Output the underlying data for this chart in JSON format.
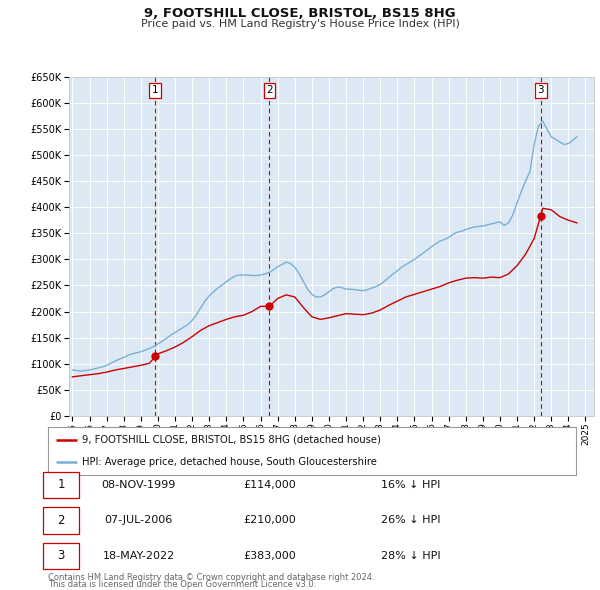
{
  "title": "9, FOOTSHILL CLOSE, BRISTOL, BS15 8HG",
  "subtitle": "Price paid vs. HM Land Registry's House Price Index (HPI)",
  "background_color": "#ffffff",
  "plot_bg_color": "#dce9f5",
  "grid_color": "#ffffff",
  "red_line_color": "#cc0000",
  "blue_line_color": "#7bafd4",
  "sale_marker_color": "#cc0000",
  "dashed_line_color": "#cc0000",
  "ylim": [
    0,
    650000
  ],
  "yticks": [
    0,
    50000,
    100000,
    150000,
    200000,
    250000,
    300000,
    350000,
    400000,
    450000,
    500000,
    550000,
    600000,
    650000
  ],
  "xlim_start": 1994.8,
  "xlim_end": 2025.5,
  "sales": [
    {
      "label": "1",
      "date": "08-NOV-1999",
      "price": 114000,
      "year": 1999.85,
      "hpi_pct": "16% ↓ HPI"
    },
    {
      "label": "2",
      "date": "07-JUL-2006",
      "price": 210000,
      "year": 2006.52,
      "hpi_pct": "26% ↓ HPI"
    },
    {
      "label": "3",
      "date": "18-MAY-2022",
      "price": 383000,
      "year": 2022.38,
      "hpi_pct": "28% ↓ HPI"
    }
  ],
  "legend_address": "9, FOOTSHILL CLOSE, BRISTOL, BS15 8HG (detached house)",
  "legend_hpi": "HPI: Average price, detached house, South Gloucestershire",
  "footer1": "Contains HM Land Registry data © Crown copyright and database right 2024.",
  "footer2": "This data is licensed under the Open Government Licence v3.0.",
  "hpi_data": {
    "years": [
      1995.0,
      1995.25,
      1995.5,
      1995.75,
      1996.0,
      1996.25,
      1996.5,
      1996.75,
      1997.0,
      1997.25,
      1997.5,
      1997.75,
      1998.0,
      1998.25,
      1998.5,
      1998.75,
      1999.0,
      1999.25,
      1999.5,
      1999.75,
      2000.0,
      2000.25,
      2000.5,
      2000.75,
      2001.0,
      2001.25,
      2001.5,
      2001.75,
      2002.0,
      2002.25,
      2002.5,
      2002.75,
      2003.0,
      2003.25,
      2003.5,
      2003.75,
      2004.0,
      2004.25,
      2004.5,
      2004.75,
      2005.0,
      2005.25,
      2005.5,
      2005.75,
      2006.0,
      2006.25,
      2006.5,
      2006.75,
      2007.0,
      2007.25,
      2007.5,
      2007.75,
      2008.0,
      2008.25,
      2008.5,
      2008.75,
      2009.0,
      2009.25,
      2009.5,
      2009.75,
      2010.0,
      2010.25,
      2010.5,
      2010.75,
      2011.0,
      2011.25,
      2011.5,
      2011.75,
      2012.0,
      2012.25,
      2012.5,
      2012.75,
      2013.0,
      2013.25,
      2013.5,
      2013.75,
      2014.0,
      2014.25,
      2014.5,
      2014.75,
      2015.0,
      2015.25,
      2015.5,
      2015.75,
      2016.0,
      2016.25,
      2016.5,
      2016.75,
      2017.0,
      2017.25,
      2017.5,
      2017.75,
      2018.0,
      2018.25,
      2018.5,
      2018.75,
      2019.0,
      2019.25,
      2019.5,
      2019.75,
      2020.0,
      2020.25,
      2020.5,
      2020.75,
      2021.0,
      2021.25,
      2021.5,
      2021.75,
      2022.0,
      2022.25,
      2022.5,
      2022.75,
      2023.0,
      2023.25,
      2023.5,
      2023.75,
      2024.0,
      2024.25,
      2024.5
    ],
    "values": [
      88000,
      87000,
      86000,
      87000,
      88000,
      90000,
      92000,
      94000,
      97000,
      101000,
      105000,
      109000,
      112000,
      116000,
      119000,
      121000,
      123000,
      126000,
      129000,
      133000,
      138000,
      143000,
      149000,
      155000,
      160000,
      165000,
      170000,
      175000,
      183000,
      194000,
      207000,
      220000,
      230000,
      238000,
      245000,
      251000,
      257000,
      263000,
      268000,
      270000,
      270000,
      270000,
      269000,
      269000,
      270000,
      272000,
      275000,
      280000,
      286000,
      290000,
      295000,
      292000,
      285000,
      273000,
      258000,
      243000,
      233000,
      228000,
      228000,
      232000,
      238000,
      244000,
      247000,
      246000,
      243000,
      243000,
      242000,
      241000,
      240000,
      242000,
      245000,
      248000,
      252000,
      258000,
      265000,
      272000,
      278000,
      285000,
      290000,
      295000,
      300000,
      306000,
      312000,
      318000,
      324000,
      330000,
      335000,
      338000,
      342000,
      348000,
      352000,
      354000,
      357000,
      360000,
      362000,
      363000,
      364000,
      366000,
      368000,
      370000,
      372000,
      365000,
      370000,
      385000,
      408000,
      430000,
      450000,
      468000,
      520000,
      555000,
      565000,
      550000,
      535000,
      530000,
      525000,
      520000,
      522000,
      528000,
      535000
    ]
  },
  "red_data": {
    "years": [
      1995.0,
      1995.5,
      1996.0,
      1996.5,
      1997.0,
      1997.5,
      1998.0,
      1998.5,
      1999.0,
      1999.5,
      1999.85,
      2000.0,
      2000.5,
      2001.0,
      2001.5,
      2002.0,
      2002.5,
      2003.0,
      2003.5,
      2004.0,
      2004.5,
      2005.0,
      2005.5,
      2006.0,
      2006.52,
      2007.0,
      2007.5,
      2008.0,
      2008.5,
      2009.0,
      2009.5,
      2010.0,
      2010.5,
      2011.0,
      2011.5,
      2012.0,
      2012.5,
      2013.0,
      2013.5,
      2014.0,
      2014.5,
      2015.0,
      2015.5,
      2016.0,
      2016.5,
      2017.0,
      2017.5,
      2018.0,
      2018.5,
      2019.0,
      2019.5,
      2020.0,
      2020.5,
      2021.0,
      2021.5,
      2022.0,
      2022.38,
      2022.5,
      2023.0,
      2023.5,
      2024.0,
      2024.5
    ],
    "values": [
      75000,
      77000,
      79000,
      81000,
      84000,
      88000,
      91000,
      94000,
      97000,
      101000,
      114000,
      119000,
      125000,
      132000,
      141000,
      152000,
      164000,
      173000,
      179000,
      185000,
      190000,
      193000,
      200000,
      210000,
      210000,
      225000,
      232000,
      228000,
      208000,
      190000,
      185000,
      188000,
      192000,
      196000,
      195000,
      194000,
      197000,
      203000,
      212000,
      220000,
      228000,
      233000,
      238000,
      243000,
      248000,
      255000,
      260000,
      264000,
      265000,
      264000,
      266000,
      265000,
      272000,
      288000,
      310000,
      340000,
      383000,
      398000,
      395000,
      382000,
      375000,
      370000
    ]
  }
}
